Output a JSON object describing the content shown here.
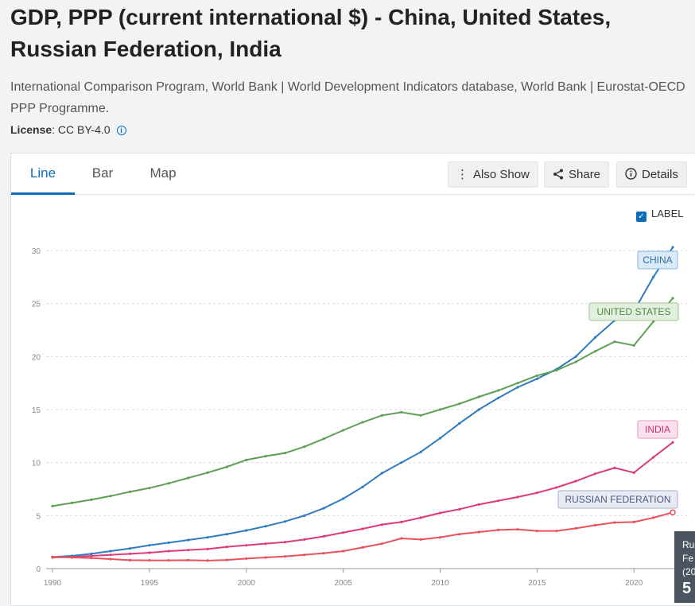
{
  "header": {
    "title": "GDP, PPP (current international $) - China, United States, Russian Federation, India",
    "source": "International Comparison Program, World Bank | World Development Indicators database, World Bank | Eurostat-OECD PPP Programme.",
    "license_label": "License",
    "license_value": ": CC BY-4.0"
  },
  "tabs": [
    {
      "label": "Line"
    },
    {
      "label": "Bar"
    },
    {
      "label": "Map"
    }
  ],
  "toolbar": {
    "also_show": "Also Show",
    "share": "Share",
    "details": "Details"
  },
  "label_toggle": "LABEL",
  "tooltip": {
    "line1": "Ru",
    "line2": "Fe",
    "line3": "(20",
    "value": "5"
  },
  "colors": {
    "accent": "#0a6fb8",
    "china": "#2f7bbf",
    "united_states": "#5f9e55",
    "india": "#dd3a7c",
    "russia": "#e8525c"
  },
  "chart_data": {
    "type": "line",
    "x": [
      1990,
      1991,
      1992,
      1993,
      1994,
      1995,
      1996,
      1997,
      1998,
      1999,
      2000,
      2001,
      2002,
      2003,
      2004,
      2005,
      2006,
      2007,
      2008,
      2009,
      2010,
      2011,
      2012,
      2013,
      2014,
      2015,
      2016,
      2017,
      2018,
      2019,
      2020,
      2021,
      2022
    ],
    "xticks": [
      1990,
      1995,
      2000,
      2005,
      2010,
      2015,
      2020
    ],
    "yticks": [
      0,
      5,
      10,
      15,
      20,
      25,
      30
    ],
    "ylim": [
      0,
      31
    ],
    "xlim": [
      1990,
      2022
    ],
    "grid": true,
    "series": [
      {
        "name": "CHINA",
        "key": "china",
        "values": [
          1.1,
          1.2,
          1.4,
          1.65,
          1.9,
          2.2,
          2.45,
          2.7,
          2.95,
          3.25,
          3.6,
          4.0,
          4.45,
          5.0,
          5.7,
          6.6,
          7.7,
          9.0,
          10.0,
          11.0,
          12.3,
          13.7,
          15.0,
          16.1,
          17.1,
          17.9,
          18.8,
          20.0,
          21.8,
          23.4,
          24.3,
          27.5,
          30.3
        ]
      },
      {
        "name": "UNITED STATES",
        "key": "united_states",
        "values": [
          5.9,
          6.2,
          6.5,
          6.85,
          7.25,
          7.6,
          8.05,
          8.55,
          9.05,
          9.6,
          10.25,
          10.6,
          10.9,
          11.5,
          12.25,
          13.05,
          13.8,
          14.45,
          14.75,
          14.45,
          15.0,
          15.55,
          16.2,
          16.8,
          17.5,
          18.2,
          18.7,
          19.5,
          20.5,
          21.4,
          21.05,
          23.3,
          25.5
        ]
      },
      {
        "name": "INDIA",
        "key": "india",
        "values": [
          1.05,
          1.1,
          1.2,
          1.3,
          1.4,
          1.5,
          1.65,
          1.75,
          1.85,
          2.05,
          2.2,
          2.35,
          2.5,
          2.75,
          3.05,
          3.4,
          3.75,
          4.15,
          4.4,
          4.8,
          5.25,
          5.6,
          6.05,
          6.4,
          6.75,
          7.15,
          7.65,
          8.25,
          8.95,
          9.5,
          9.05,
          10.5,
          11.9
        ]
      },
      {
        "name": "RUSSIAN FEDERATION",
        "key": "russia",
        "values": [
          1.1,
          1.05,
          1.0,
          0.9,
          0.8,
          0.78,
          0.78,
          0.8,
          0.76,
          0.82,
          0.95,
          1.05,
          1.15,
          1.3,
          1.45,
          1.65,
          2.0,
          2.35,
          2.85,
          2.75,
          2.95,
          3.25,
          3.45,
          3.65,
          3.7,
          3.55,
          3.55,
          3.8,
          4.1,
          4.35,
          4.4,
          4.8,
          5.3
        ]
      }
    ]
  }
}
